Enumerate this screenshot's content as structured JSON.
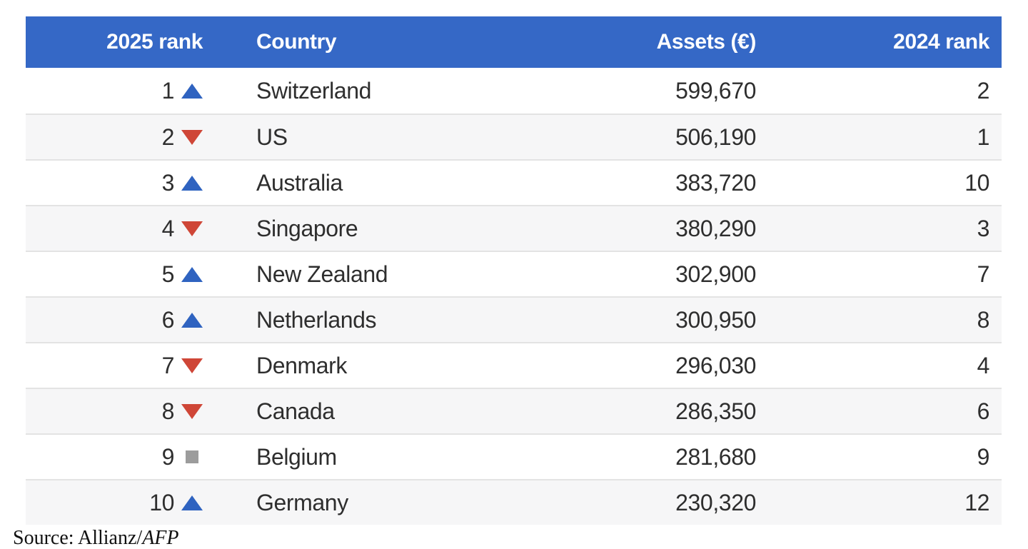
{
  "chart_data": {
    "type": "table",
    "columns": [
      "2025 rank",
      "Country",
      "Assets (€)",
      "2024 rank"
    ],
    "rows": [
      {
        "rank_2025": "1",
        "change": "up",
        "country": "Switzerland",
        "assets": "599,670",
        "rank_2024": "2"
      },
      {
        "rank_2025": "2",
        "change": "down",
        "country": "US",
        "assets": "506,190",
        "rank_2024": "1"
      },
      {
        "rank_2025": "3",
        "change": "up",
        "country": "Australia",
        "assets": "383,720",
        "rank_2024": "10"
      },
      {
        "rank_2025": "4",
        "change": "down",
        "country": "Singapore",
        "assets": "380,290",
        "rank_2024": "3"
      },
      {
        "rank_2025": "5",
        "change": "up",
        "country": "New Zealand",
        "assets": "302,900",
        "rank_2024": "7"
      },
      {
        "rank_2025": "6",
        "change": "up",
        "country": "Netherlands",
        "assets": "300,950",
        "rank_2024": "8"
      },
      {
        "rank_2025": "7",
        "change": "down",
        "country": "Denmark",
        "assets": "296,030",
        "rank_2024": "4"
      },
      {
        "rank_2025": "8",
        "change": "down",
        "country": "Canada",
        "assets": "286,350",
        "rank_2024": "6"
      },
      {
        "rank_2025": "9",
        "change": "same",
        "country": "Belgium",
        "assets": "281,680",
        "rank_2024": "9"
      },
      {
        "rank_2025": "10",
        "change": "up",
        "country": "Germany",
        "assets": "230,320",
        "rank_2024": "12"
      }
    ],
    "source_prefix": "Source: Allianz/",
    "source_agency": "AFP"
  },
  "colors": {
    "header_bg": "#3568c6",
    "header_text": "#ffffff",
    "text": "#2e2e2e",
    "up": "#2f63c0",
    "down": "#cf4637",
    "same": "#9c9c9c",
    "row_alt": "#f6f6f7",
    "row_border": "#e3e3e3"
  }
}
